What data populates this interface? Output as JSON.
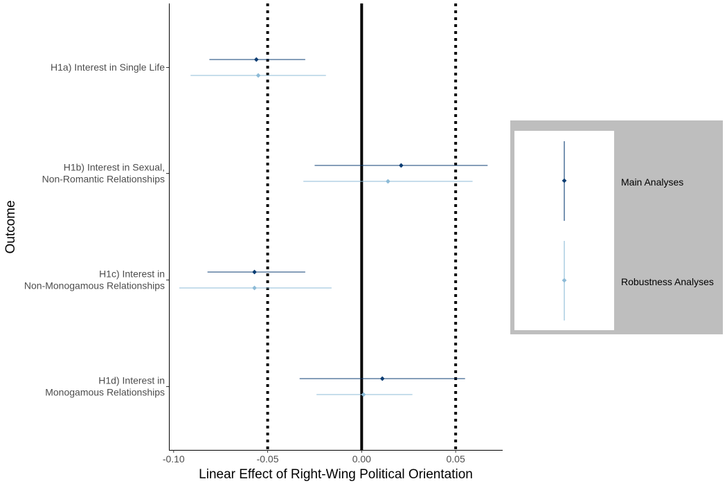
{
  "colors": {
    "main": "#0b3d73",
    "robust": "#8dbbd7",
    "legend_bg": "#bebebe"
  },
  "chart_data": {
    "type": "forest",
    "xlabel": "Linear Effect of Right-Wing Political Orientation",
    "ylabel": "Outcome",
    "xlim": [
      -0.1025,
      0.075
    ],
    "x_ticks": [
      {
        "value": -0.1,
        "label": "-0.10"
      },
      {
        "value": -0.05,
        "label": "-0.05"
      },
      {
        "value": 0.0,
        "label": "0.00"
      },
      {
        "value": 0.05,
        "label": "0.05"
      }
    ],
    "reference_lines": [
      {
        "value": 0.0,
        "style": "solid"
      },
      {
        "value": -0.05,
        "style": "dotted"
      },
      {
        "value": 0.05,
        "style": "dotted"
      }
    ],
    "grid": false,
    "legend_position": "right",
    "categories": [
      [
        "H1a) Interest in Single Life"
      ],
      [
        "H1b) Interest in Sexual,",
        "Non-Romantic Relationships"
      ],
      [
        "H1c) Interest in",
        "Non-Monogamous Relationships"
      ],
      [
        "H1d) Interest in",
        "Monogamous Relationships"
      ]
    ],
    "series": [
      {
        "name": "Main Analyses",
        "estimates": [
          -0.056,
          0.021,
          -0.057,
          0.011
        ],
        "lower": [
          -0.081,
          -0.025,
          -0.082,
          -0.033
        ],
        "upper": [
          -0.03,
          0.067,
          -0.03,
          0.055
        ]
      },
      {
        "name": "Robustness Analyses",
        "estimates": [
          -0.055,
          0.014,
          -0.057,
          0.001
        ],
        "lower": [
          -0.091,
          -0.031,
          -0.097,
          -0.024
        ],
        "upper": [
          -0.019,
          0.059,
          -0.016,
          0.027
        ]
      }
    ]
  }
}
